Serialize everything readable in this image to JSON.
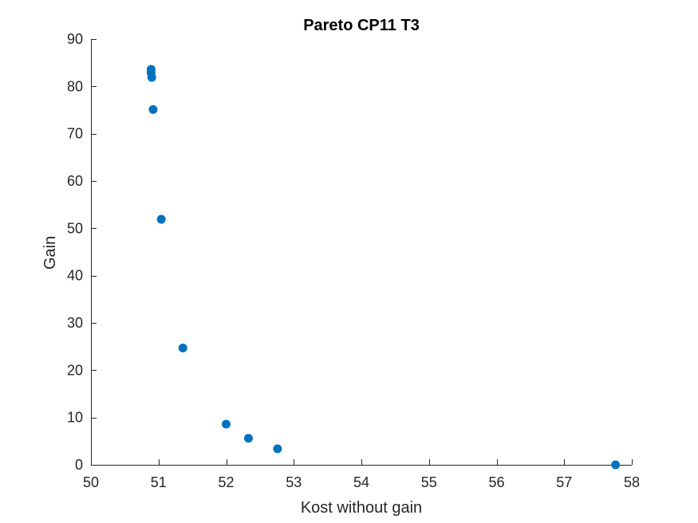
{
  "chart_data": {
    "type": "scatter",
    "title": "Pareto CP11 T3",
    "xlabel": "Kost without gain",
    "ylabel": "Gain",
    "xlim": [
      50,
      58
    ],
    "ylim": [
      0,
      90
    ],
    "xticks": [
      50,
      51,
      52,
      53,
      54,
      55,
      56,
      57,
      58
    ],
    "yticks": [
      0,
      10,
      20,
      30,
      40,
      50,
      60,
      70,
      80,
      90
    ],
    "grid": false,
    "legend": "none",
    "marker_color": "#0072BD",
    "points": [
      {
        "x": 50.89,
        "y": 83.6
      },
      {
        "x": 50.89,
        "y": 82.9
      },
      {
        "x": 50.9,
        "y": 81.9
      },
      {
        "x": 50.92,
        "y": 75.1
      },
      {
        "x": 51.04,
        "y": 51.9
      },
      {
        "x": 51.36,
        "y": 24.7
      },
      {
        "x": 52.0,
        "y": 8.6
      },
      {
        "x": 52.33,
        "y": 5.6
      },
      {
        "x": 52.76,
        "y": 3.4
      },
      {
        "x": 57.76,
        "y": 0.0
      }
    ]
  }
}
